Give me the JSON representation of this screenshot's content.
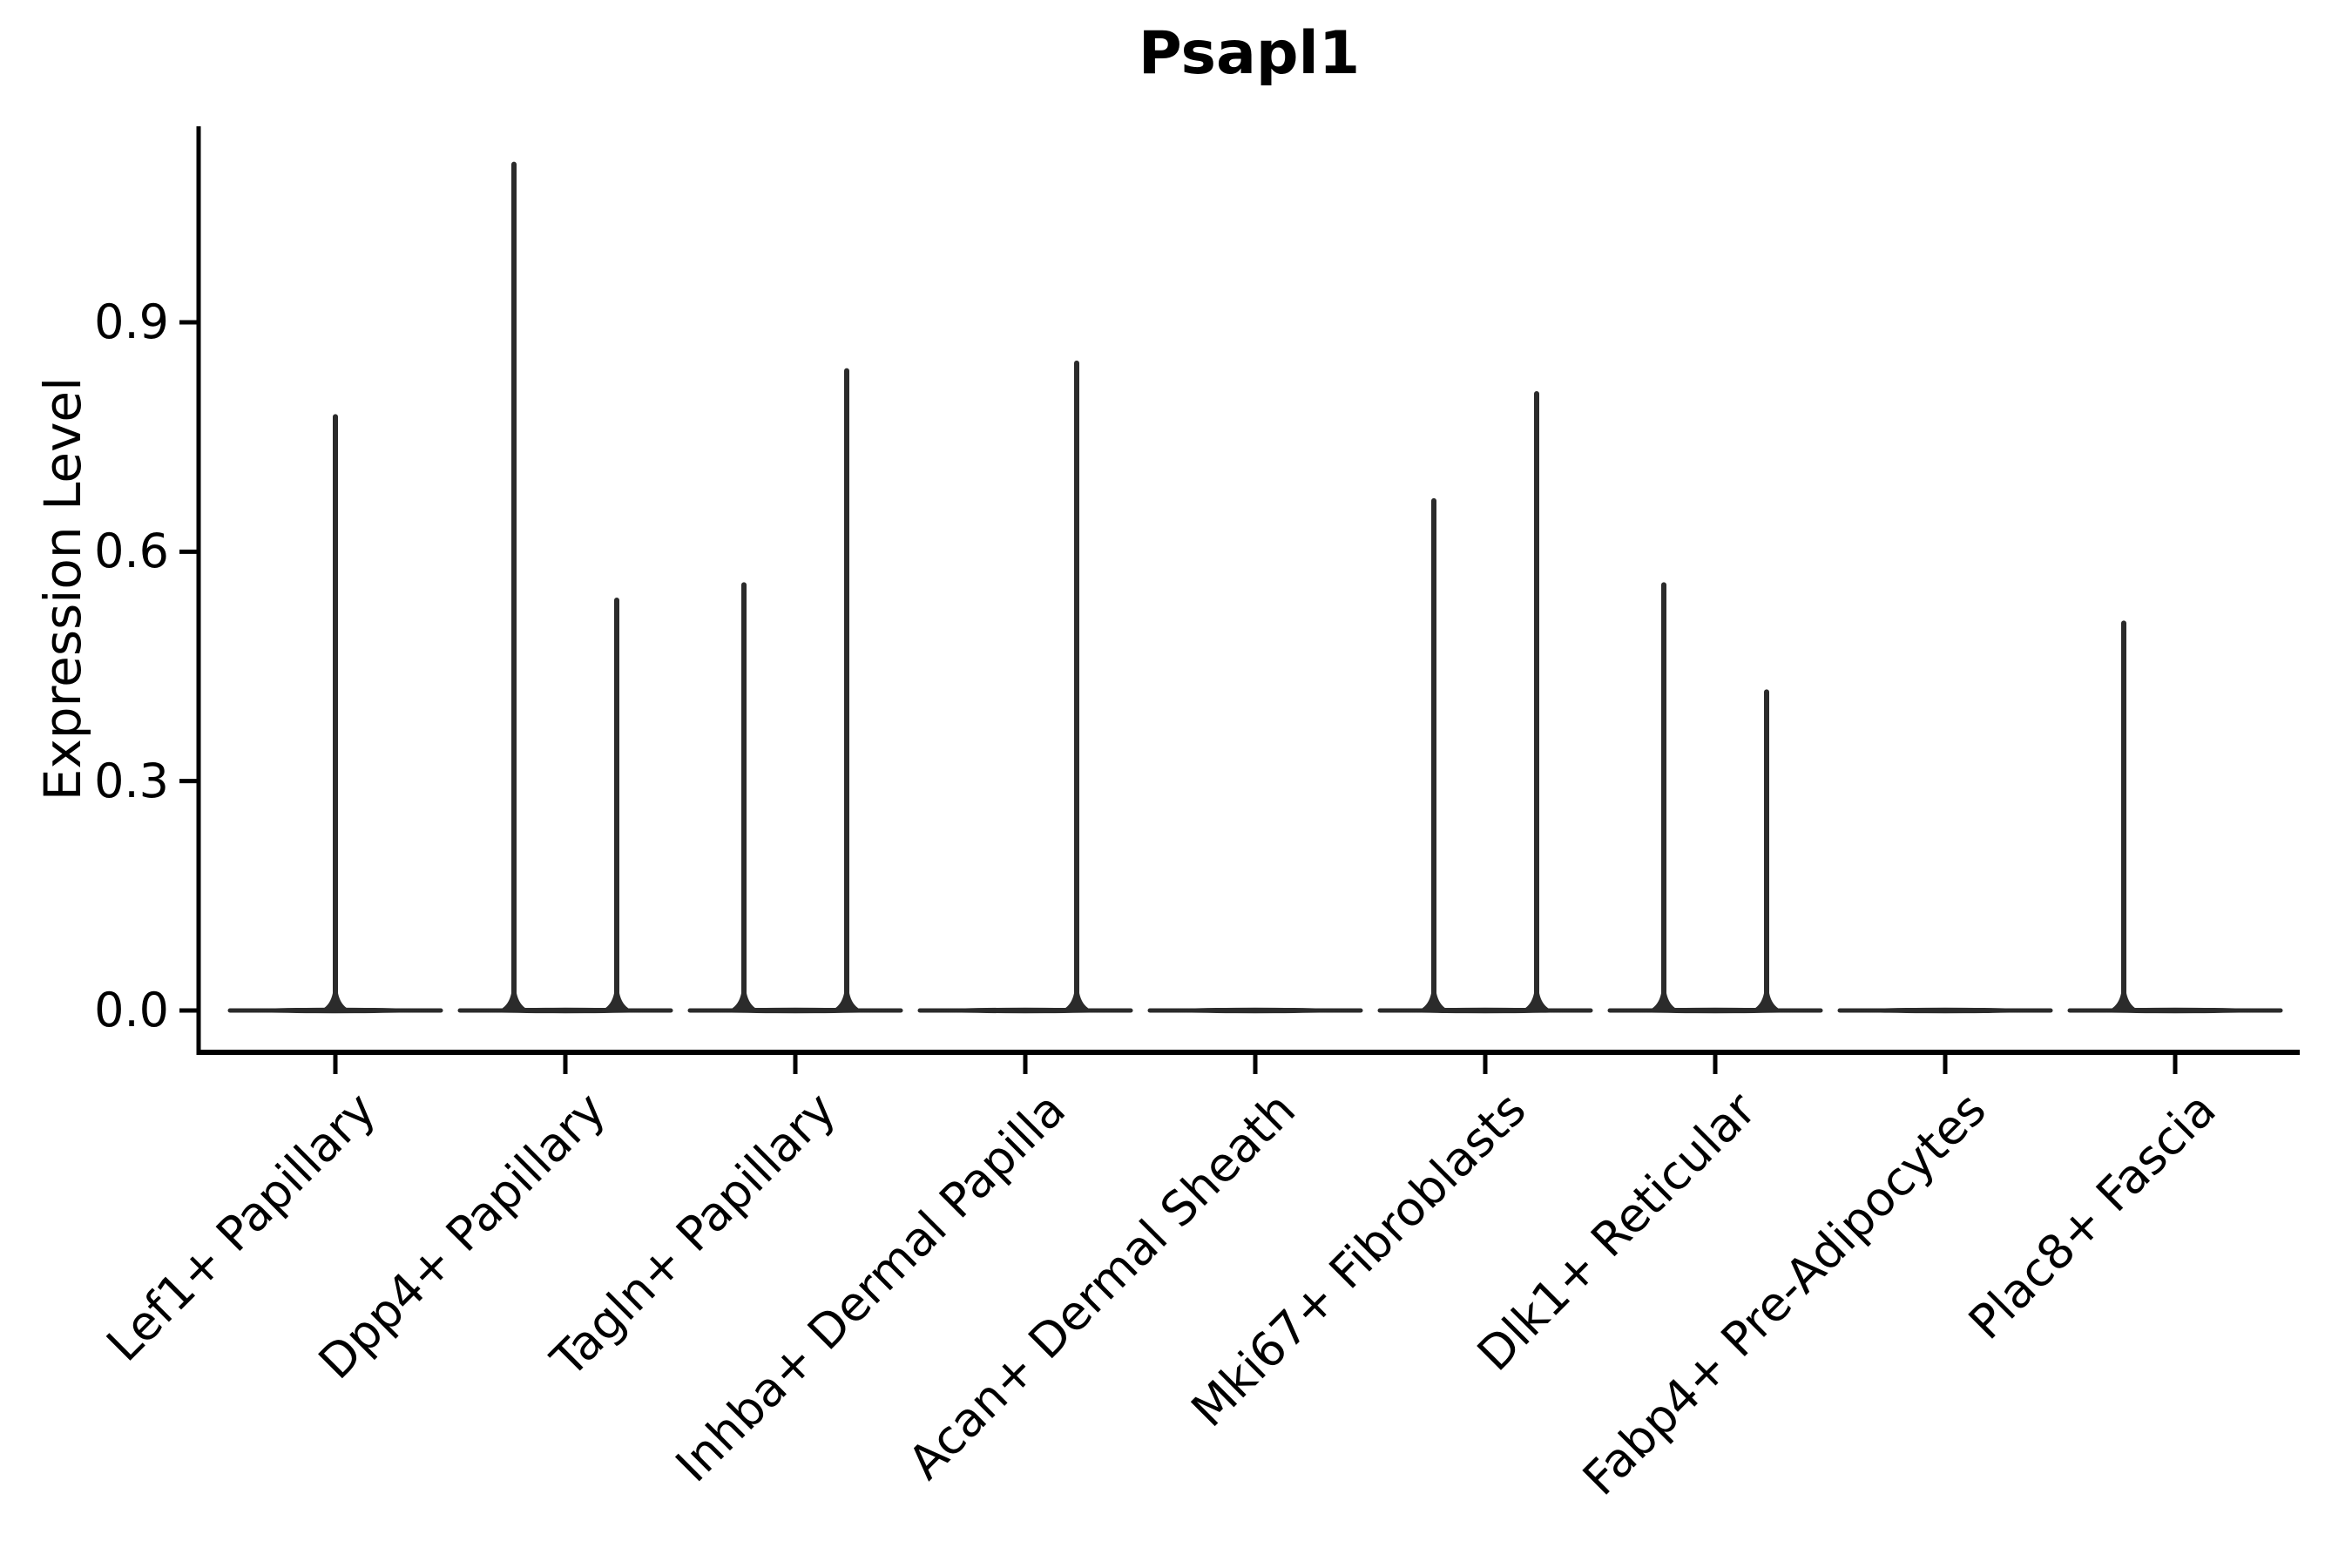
{
  "chart_data": {
    "type": "violin",
    "title": "Psapl1",
    "ylabel": "Expression Level",
    "xlabel": "",
    "ytick_labels": [
      "0.0",
      "0.3",
      "0.6",
      "0.9"
    ],
    "yticks": [
      0.0,
      0.3,
      0.6,
      0.9
    ],
    "ylim": [
      -0.05,
      1.16
    ],
    "grid": false,
    "legend": "none",
    "categories": [
      "Lef1+ Papillary",
      "Dpp4+ Papillary",
      "Tagln+ Papillary",
      "Inhba+ Dermal Papilla",
      "Acan+ Dermal Sheath",
      "Mki67+ Fibroblasts",
      "Dlk1+ Reticular",
      "Fabp4+ Pre-Adipocytes",
      "Plac8+ Fascia"
    ],
    "violins": [
      {
        "category": "Lef1+ Papillary",
        "baseline_value": 0.0,
        "spikes": [
          {
            "position": "center",
            "max": 0.78
          }
        ]
      },
      {
        "category": "Dpp4+ Papillary",
        "baseline_value": 0.0,
        "spikes": [
          {
            "position": "left",
            "max": 1.11
          },
          {
            "position": "right",
            "max": 0.54
          }
        ]
      },
      {
        "category": "Tagln+ Papillary",
        "baseline_value": 0.0,
        "spikes": [
          {
            "position": "left",
            "max": 0.56
          },
          {
            "position": "right",
            "max": 0.84
          }
        ]
      },
      {
        "category": "Inhba+ Dermal Papilla",
        "baseline_value": 0.0,
        "spikes": [
          {
            "position": "right",
            "max": 0.85
          }
        ]
      },
      {
        "category": "Acan+ Dermal Sheath",
        "baseline_value": 0.0,
        "spikes": []
      },
      {
        "category": "Mki67+ Fibroblasts",
        "baseline_value": 0.0,
        "spikes": [
          {
            "position": "left",
            "max": 0.67
          },
          {
            "position": "right",
            "max": 0.81
          }
        ]
      },
      {
        "category": "Dlk1+ Reticular",
        "baseline_value": 0.0,
        "spikes": [
          {
            "position": "left",
            "max": 0.56
          },
          {
            "position": "right",
            "max": 0.42
          }
        ]
      },
      {
        "category": "Fabp4+ Pre-Adipocytes",
        "baseline_value": 0.0,
        "spikes": []
      },
      {
        "category": "Plac8+ Fascia",
        "baseline_value": 0.0,
        "spikes": [
          {
            "position": "left",
            "max": 0.51
          }
        ]
      }
    ],
    "colors": {
      "violin": "#2b2b2b",
      "axis": "#000000",
      "text": "#000000"
    }
  }
}
